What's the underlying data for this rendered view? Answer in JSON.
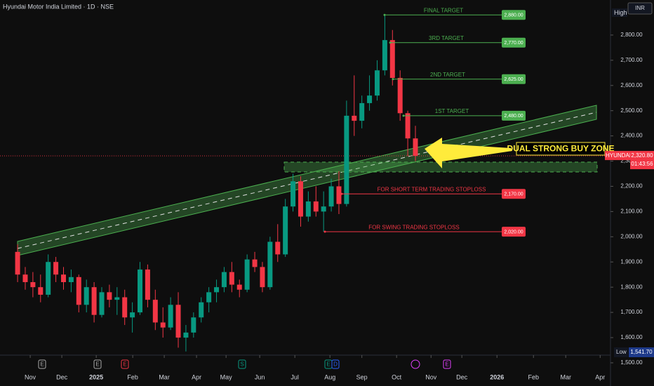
{
  "chart_data": {
    "type": "candlestick",
    "title": "Hyundai Motor India Limited · 1D · NSE",
    "currency": "INR",
    "symbol": "HYUNDAI",
    "countdown": "01:43:56",
    "zone_label": "DUAL STRONG BUY ZONE",
    "high_label": "High",
    "low_label": "Low",
    "low": {
      "value": 1541.7,
      "label": "1,541.70"
    },
    "last": {
      "value": 2320.8,
      "label": "2,320.80"
    },
    "up_color": "#089981",
    "down_color": "#f23645",
    "categories": [
      null,
      null,
      null,
      null,
      null,
      null,
      null,
      null,
      null,
      null,
      null,
      null,
      null,
      null,
      null,
      null,
      null,
      null,
      null,
      null,
      null,
      null,
      null,
      null,
      null,
      null,
      null,
      null,
      null,
      null,
      null,
      null,
      null,
      null,
      null,
      null,
      null,
      null,
      null,
      null,
      null,
      null,
      null,
      null,
      null,
      null,
      null,
      null,
      null,
      null,
      null,
      null,
      null
    ],
    "ohlc": [
      [
        1940,
        1970,
        1820,
        1850
      ],
      [
        1850,
        1880,
        1790,
        1820
      ],
      [
        1820,
        1860,
        1760,
        1800
      ],
      [
        1800,
        1850,
        1740,
        1770
      ],
      [
        1770,
        1930,
        1760,
        1900
      ],
      [
        1900,
        1920,
        1820,
        1850
      ],
      [
        1850,
        1880,
        1790,
        1820
      ],
      [
        1820,
        1870,
        1780,
        1840
      ],
      [
        1840,
        1850,
        1700,
        1730
      ],
      [
        1730,
        1830,
        1700,
        1800
      ],
      [
        1800,
        1820,
        1660,
        1690
      ],
      [
        1690,
        1800,
        1680,
        1780
      ],
      [
        1780,
        1810,
        1720,
        1750
      ],
      [
        1750,
        1800,
        1690,
        1760
      ],
      [
        1760,
        1790,
        1650,
        1680
      ],
      [
        1680,
        1740,
        1620,
        1700
      ],
      [
        1700,
        1900,
        1690,
        1870
      ],
      [
        1870,
        1890,
        1720,
        1750
      ],
      [
        1750,
        1790,
        1630,
        1660
      ],
      [
        1660,
        1720,
        1600,
        1640
      ],
      [
        1640,
        1760,
        1630,
        1730
      ],
      [
        1730,
        1780,
        1560,
        1600
      ],
      [
        1600,
        1650,
        1545,
        1620
      ],
      [
        1620,
        1700,
        1600,
        1680
      ],
      [
        1680,
        1760,
        1660,
        1740
      ],
      [
        1740,
        1800,
        1700,
        1780
      ],
      [
        1780,
        1830,
        1740,
        1800
      ],
      [
        1800,
        1880,
        1780,
        1860
      ],
      [
        1860,
        1900,
        1780,
        1810
      ],
      [
        1810,
        1830,
        1760,
        1790
      ],
      [
        1790,
        1930,
        1780,
        1910
      ],
      [
        1910,
        1940,
        1860,
        1880
      ],
      [
        1880,
        1900,
        1780,
        1800
      ],
      [
        1800,
        2000,
        1790,
        1980
      ],
      [
        1980,
        2050,
        1900,
        1930
      ],
      [
        1930,
        2150,
        1920,
        2120
      ],
      [
        2120,
        2250,
        2100,
        2220
      ],
      [
        2220,
        2240,
        2040,
        2080
      ],
      [
        2080,
        2180,
        2060,
        2140
      ],
      [
        2140,
        2200,
        2080,
        2100
      ],
      [
        2100,
        2180,
        2020,
        2120
      ],
      [
        2120,
        2230,
        2100,
        2200
      ],
      [
        2200,
        2260,
        2090,
        2130
      ],
      [
        2130,
        2540,
        2120,
        2480
      ],
      [
        2480,
        2640,
        2400,
        2460
      ],
      [
        2460,
        2560,
        2430,
        2530
      ],
      [
        2530,
        2640,
        2500,
        2560
      ],
      [
        2560,
        2700,
        2540,
        2660
      ],
      [
        2660,
        2880,
        2640,
        2780
      ],
      [
        2780,
        2820,
        2600,
        2630
      ],
      [
        2630,
        2660,
        2460,
        2490
      ],
      [
        2490,
        2500,
        2320,
        2390
      ],
      [
        2390,
        2440,
        2300,
        2320.8
      ]
    ],
    "levels": [
      {
        "label": "FINAL TARGET",
        "value": 2880,
        "value_label": "2,880.00",
        "color": "#4caf50"
      },
      {
        "label": "3RD TARGET",
        "value": 2770,
        "value_label": "2,770.00",
        "color": "#4caf50"
      },
      {
        "label": "2ND TARGET",
        "value": 2625,
        "value_label": "2,625.00",
        "color": "#4caf50"
      },
      {
        "label": "1ST TARGET",
        "value": 2480,
        "value_label": "2,480.00",
        "color": "#4caf50"
      },
      {
        "label": "FOR SHORT TERM TRADING STOPLOSS",
        "value": 2170,
        "value_label": "2,170.00",
        "color": "#f23645"
      },
      {
        "label": "FOR SWING TRADING STOPLOSS",
        "value": 2020,
        "value_label": "2,020.00",
        "color": "#f23645"
      }
    ],
    "events": [
      "E",
      "E",
      "E",
      "S",
      "E",
      "D",
      "E"
    ],
    "xlim": [
      -2.3,
      77.5
    ],
    "xticks": [
      {
        "value": 1.65,
        "label": "Nov"
      },
      {
        "value": 5.78,
        "label": "Dec"
      },
      {
        "value": 10.28,
        "label": "2025"
      },
      {
        "value": 15.05,
        "label": "Feb"
      },
      {
        "value": 19.17,
        "label": "Mar"
      },
      {
        "value": 23.39,
        "label": "Apr"
      },
      {
        "value": 27.25,
        "label": "May"
      },
      {
        "value": 31.65,
        "label": "Jun"
      },
      {
        "value": 36.24,
        "label": "Jul"
      },
      {
        "value": 40.83,
        "label": "Aug"
      },
      {
        "value": 45.0,
        "label": "Sep"
      },
      {
        "value": 49.54,
        "label": "Oct"
      },
      {
        "value": 54.04,
        "label": "Nov"
      },
      {
        "value": 58.07,
        "label": "Dec"
      },
      {
        "value": 62.66,
        "label": "2026"
      },
      {
        "value": 67.43,
        "label": "Feb"
      },
      {
        "value": 71.65,
        "label": "Mar"
      },
      {
        "value": 76.15,
        "label": "Apr"
      }
    ],
    "ylim": [
      1408,
      2939
    ],
    "yticks": [
      {
        "value": 1500,
        "label": "1,500.00"
      },
      {
        "value": 1600,
        "label": "1,600.00"
      },
      {
        "value": 1700,
        "label": "1,700.00"
      },
      {
        "value": 1800,
        "label": "1,800.00"
      },
      {
        "value": 1900,
        "label": "1,900.00"
      },
      {
        "value": 2000,
        "label": "2,000.00"
      },
      {
        "value": 2100,
        "label": "2,100.00"
      },
      {
        "value": 2200,
        "label": "2,200.00"
      },
      {
        "value": 2300,
        "label": "2,300.00"
      },
      {
        "value": 2400,
        "label": "2,400.00"
      },
      {
        "value": 2500,
        "label": "2,500.00"
      },
      {
        "value": 2600,
        "label": "2,600.00"
      },
      {
        "value": 2700,
        "label": "2,700.00"
      },
      {
        "value": 2800,
        "label": "2,800.00"
      }
    ]
  }
}
